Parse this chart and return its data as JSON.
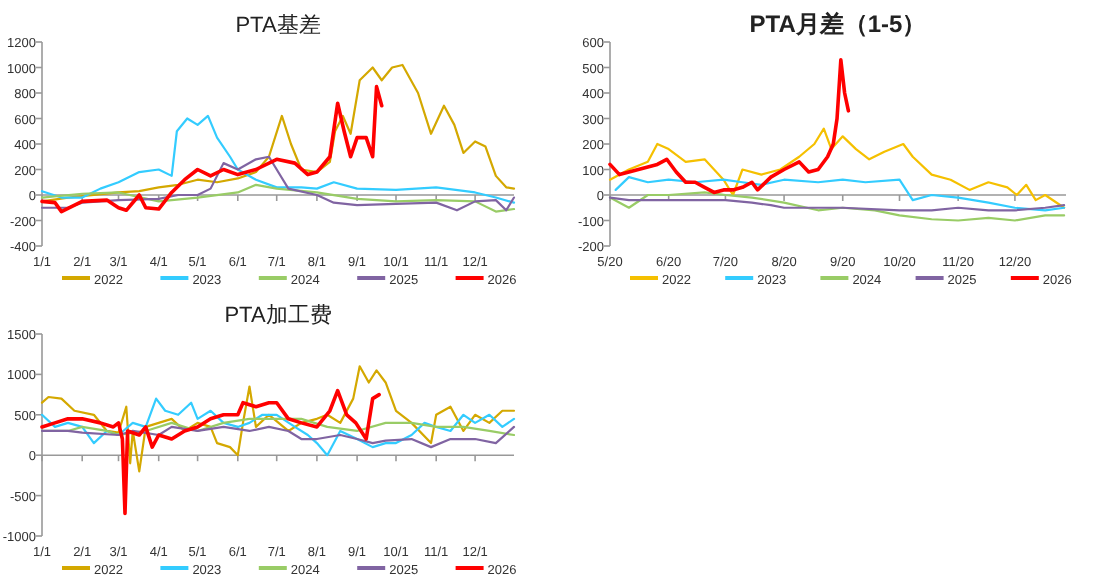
{
  "chart_data": [
    {
      "type": "line",
      "title": "PTA基差",
      "xlim": [
        "--01-01",
        "--12-31"
      ],
      "xticks": [
        {
          "value": "--01-01",
          "label": "1/1"
        },
        {
          "value": "--02-01",
          "label": "2/1"
        },
        {
          "value": "--03-01",
          "label": "3/1"
        },
        {
          "value": "--04-01",
          "label": "4/1"
        },
        {
          "value": "--05-01",
          "label": "5/1"
        },
        {
          "value": "--06-01",
          "label": "6/1"
        },
        {
          "value": "--07-01",
          "label": "7/1"
        },
        {
          "value": "--08-01",
          "label": "8/1"
        },
        {
          "value": "--09-01",
          "label": "9/1"
        },
        {
          "value": "--10-01",
          "label": "10/1"
        },
        {
          "value": "--11-01",
          "label": "11/1"
        },
        {
          "value": "--12-01",
          "label": "12/1"
        }
      ],
      "ylim": [
        -400,
        1200
      ],
      "yticks": [
        -400,
        -200,
        0,
        200,
        400,
        600,
        800,
        1000,
        1200
      ],
      "legend": "bottom",
      "marker": "none",
      "line_style": "solid",
      "series": [
        {
          "name": "2022",
          "color": "#d4a800",
          "x": [
            "--01-01",
            "--01-21",
            "--02-10",
            "--03-01",
            "--03-17",
            "--04-01",
            "--04-16",
            "--05-01",
            "--05-16",
            "--06-01",
            "--06-15",
            "--06-25",
            "--07-05",
            "--07-12",
            "--07-20",
            "--08-01",
            "--08-11",
            "--08-15",
            "--08-21",
            "--08-27",
            "--09-03",
            "--09-13",
            "--09-20",
            "--09-28",
            "--10-06",
            "--10-18",
            "--10-28",
            "--11-07",
            "--11-15",
            "--11-22",
            "--12-01",
            "--12-09",
            "--12-17",
            "--12-25",
            "--12-31"
          ],
          "values": [
            -50,
            -20,
            0,
            20,
            30,
            60,
            80,
            120,
            100,
            130,
            180,
            300,
            620,
            400,
            200,
            180,
            260,
            500,
            620,
            480,
            900,
            1000,
            900,
            1000,
            1020,
            800,
            480,
            700,
            550,
            330,
            420,
            380,
            150,
            60,
            50
          ]
        },
        {
          "name": "2023",
          "color": "#33ccff",
          "x": [
            "--01-01",
            "--01-16",
            "--02-01",
            "--02-15",
            "--03-01",
            "--03-17",
            "--04-01",
            "--04-11",
            "--04-15",
            "--04-23",
            "--05-01",
            "--05-09",
            "--05-16",
            "--05-26",
            "--06-01",
            "--06-15",
            "--07-01",
            "--07-20",
            "--08-01",
            "--08-14",
            "--09-01",
            "--10-01",
            "--11-01",
            "--12-01",
            "--12-17",
            "--12-31"
          ],
          "values": [
            30,
            -20,
            -20,
            50,
            100,
            180,
            200,
            150,
            500,
            600,
            550,
            620,
            450,
            300,
            200,
            120,
            60,
            60,
            50,
            100,
            50,
            40,
            60,
            20,
            -20,
            -60
          ]
        },
        {
          "name": "2024",
          "color": "#99cc66",
          "x": [
            "--01-01",
            "--02-01",
            "--03-01",
            "--04-01",
            "--05-01",
            "--06-01",
            "--06-15",
            "--07-01",
            "--08-01",
            "--09-01",
            "--10-01",
            "--11-01",
            "--12-01",
            "--12-17",
            "--12-31"
          ],
          "values": [
            -20,
            10,
            20,
            -50,
            -20,
            20,
            80,
            50,
            20,
            -30,
            -50,
            -40,
            -50,
            -130,
            -110
          ]
        },
        {
          "name": "2025",
          "color": "#8064a2",
          "x": [
            "--01-01",
            "--01-21",
            "--02-01",
            "--03-01",
            "--04-01",
            "--04-16",
            "--05-01",
            "--05-11",
            "--05-21",
            "--06-01",
            "--06-15",
            "--06-25",
            "--07-01",
            "--07-10",
            "--08-01",
            "--08-14",
            "--09-01",
            "--10-01",
            "--11-01",
            "--11-17",
            "--12-01",
            "--12-17",
            "--12-25",
            "--12-31"
          ],
          "values": [
            -100,
            -100,
            -60,
            -40,
            -30,
            0,
            0,
            50,
            250,
            200,
            280,
            300,
            200,
            50,
            0,
            -60,
            -80,
            -70,
            -60,
            -120,
            -50,
            -40,
            -120,
            -20
          ]
        },
        {
          "name": "2026",
          "color": "#ff0000",
          "x": [
            "--01-01",
            "--01-11",
            "--01-16",
            "--02-01",
            "--02-20",
            "--03-01",
            "--03-07",
            "--03-17",
            "--03-22",
            "--04-01",
            "--04-11",
            "--04-21",
            "--05-01",
            "--05-11",
            "--05-21",
            "--06-01",
            "--06-15",
            "--07-01",
            "--07-15",
            "--07-25",
            "--08-01",
            "--08-11",
            "--08-17",
            "--08-22",
            "--08-27",
            "--09-01",
            "--09-08",
            "--09-13",
            "--09-16",
            "--09-20"
          ],
          "values": [
            -50,
            -60,
            -130,
            -50,
            -40,
            -100,
            -120,
            0,
            -100,
            -110,
            20,
            120,
            200,
            150,
            200,
            160,
            200,
            280,
            250,
            160,
            180,
            300,
            720,
            500,
            300,
            450,
            450,
            300,
            850,
            700
          ]
        }
      ]
    },
    {
      "type": "line",
      "title": "PTA月差（1-5）",
      "xlim": [
        "2025-05-20",
        "2026-01-16"
      ],
      "xticks": [
        {
          "value": "2025-05-20",
          "label": "5/20"
        },
        {
          "value": "2025-06-20",
          "label": "6/20"
        },
        {
          "value": "2025-07-20",
          "label": "7/20"
        },
        {
          "value": "2025-08-20",
          "label": "8/20"
        },
        {
          "value": "2025-09-20",
          "label": "9/20"
        },
        {
          "value": "2025-10-20",
          "label": "10/20"
        },
        {
          "value": "2025-11-20",
          "label": "11/20"
        },
        {
          "value": "2025-12-20",
          "label": "12/20"
        }
      ],
      "ylim": [
        -200,
        600
      ],
      "yticks": [
        -200,
        -100,
        0,
        100,
        200,
        300,
        400,
        500,
        600
      ],
      "legend": "bottom",
      "marker": "none",
      "line_style": "solid",
      "series": [
        {
          "name": "2022",
          "color": "#f5c000",
          "x": [
            "2025-05-20",
            "2025-05-30",
            "2025-06-09",
            "2025-06-14",
            "2025-06-20",
            "2025-06-29",
            "2025-07-09",
            "2025-07-14",
            "2025-07-19",
            "2025-07-24",
            "2025-07-29",
            "2025-08-08",
            "2025-08-18",
            "2025-08-28",
            "2025-09-05",
            "2025-09-10",
            "2025-09-14",
            "2025-09-20",
            "2025-09-27",
            "2025-10-04",
            "2025-10-12",
            "2025-10-22",
            "2025-10-27",
            "2025-11-06",
            "2025-11-16",
            "2025-11-26",
            "2025-12-06",
            "2025-12-16",
            "2025-12-21",
            "2025-12-26",
            "2025-12-31",
            "2026-01-05",
            "2026-01-15"
          ],
          "values": [
            60,
            100,
            130,
            200,
            180,
            130,
            140,
            100,
            60,
            0,
            100,
            80,
            100,
            150,
            200,
            260,
            180,
            230,
            180,
            140,
            170,
            200,
            150,
            80,
            60,
            20,
            50,
            30,
            0,
            40,
            -20,
            0,
            -50
          ]
        },
        {
          "name": "2023",
          "color": "#33ccff",
          "x": [
            "2025-05-23",
            "2025-05-30",
            "2025-06-09",
            "2025-06-20",
            "2025-07-04",
            "2025-07-19",
            "2025-07-29",
            "2025-08-08",
            "2025-08-20",
            "2025-09-07",
            "2025-09-20",
            "2025-10-02",
            "2025-10-20",
            "2025-10-27",
            "2025-11-06",
            "2025-11-20",
            "2025-12-06",
            "2025-12-20",
            "2026-01-05",
            "2026-01-15"
          ],
          "values": [
            20,
            70,
            50,
            60,
            50,
            60,
            50,
            40,
            60,
            50,
            60,
            50,
            60,
            -20,
            0,
            -10,
            -30,
            -50,
            -60,
            -50
          ]
        },
        {
          "name": "2024",
          "color": "#99cc66",
          "x": [
            "2025-05-20",
            "2025-05-30",
            "2025-06-09",
            "2025-06-20",
            "2025-07-09",
            "2025-07-20",
            "2025-08-03",
            "2025-08-20",
            "2025-09-07",
            "2025-09-20",
            "2025-10-07",
            "2025-10-20",
            "2025-11-06",
            "2025-11-20",
            "2025-12-06",
            "2025-12-20",
            "2026-01-05",
            "2026-01-15"
          ],
          "values": [
            -10,
            -50,
            0,
            0,
            10,
            0,
            -10,
            -30,
            -60,
            -50,
            -60,
            -80,
            -95,
            -100,
            -90,
            -100,
            -80,
            -80
          ]
        },
        {
          "name": "2025",
          "color": "#8064a2",
          "x": [
            "2025-05-20",
            "2025-05-30",
            "2025-06-09",
            "2025-06-20",
            "2025-07-09",
            "2025-07-20",
            "2025-08-03",
            "2025-08-13",
            "2025-08-20",
            "2025-09-07",
            "2025-09-20",
            "2025-10-20",
            "2025-11-06",
            "2025-11-20",
            "2025-12-06",
            "2025-12-20",
            "2026-01-05",
            "2026-01-15"
          ],
          "values": [
            -10,
            -20,
            -20,
            -20,
            -20,
            -20,
            -30,
            -40,
            -50,
            -50,
            -50,
            -60,
            -60,
            -50,
            -60,
            -60,
            -50,
            -40
          ]
        },
        {
          "name": "2026",
          "color": "#ff0000",
          "x": [
            "2025-05-20",
            "2025-05-25",
            "2025-05-30",
            "2025-06-04",
            "2025-06-14",
            "2025-06-19",
            "2025-06-24",
            "2025-06-29",
            "2025-07-04",
            "2025-07-09",
            "2025-07-14",
            "2025-07-19",
            "2025-07-24",
            "2025-07-29",
            "2025-08-03",
            "2025-08-06",
            "2025-08-13",
            "2025-08-20",
            "2025-08-28",
            "2025-09-02",
            "2025-09-07",
            "2025-09-12",
            "2025-09-15",
            "2025-09-17",
            "2025-09-19",
            "2025-09-21",
            "2025-09-23"
          ],
          "values": [
            120,
            80,
            90,
            100,
            120,
            140,
            90,
            50,
            50,
            30,
            10,
            20,
            20,
            30,
            50,
            20,
            70,
            100,
            130,
            90,
            100,
            150,
            200,
            300,
            530,
            400,
            330
          ]
        }
      ]
    },
    {
      "type": "line",
      "title": "PTA加工费",
      "xlim": [
        "--01-01",
        "--12-31"
      ],
      "xticks": [
        {
          "value": "--01-01",
          "label": "1/1"
        },
        {
          "value": "--02-01",
          "label": "2/1"
        },
        {
          "value": "--03-01",
          "label": "3/1"
        },
        {
          "value": "--04-01",
          "label": "4/1"
        },
        {
          "value": "--05-01",
          "label": "5/1"
        },
        {
          "value": "--06-01",
          "label": "6/1"
        },
        {
          "value": "--07-01",
          "label": "7/1"
        },
        {
          "value": "--08-01",
          "label": "8/1"
        },
        {
          "value": "--09-01",
          "label": "9/1"
        },
        {
          "value": "--10-01",
          "label": "10/1"
        },
        {
          "value": "--11-01",
          "label": "11/1"
        },
        {
          "value": "--12-01",
          "label": "12/1"
        }
      ],
      "ylim": [
        -1000,
        1500
      ],
      "yticks": [
        -1000,
        -500,
        0,
        500,
        1000,
        1500
      ],
      "legend": "bottom",
      "marker": "none",
      "line_style": "solid",
      "series": [
        {
          "name": "2022",
          "color": "#d4a800",
          "x": [
            "--01-01",
            "--01-06",
            "--01-16",
            "--01-26",
            "--02-10",
            "--02-20",
            "--03-01",
            "--03-07",
            "--03-10",
            "--03-12",
            "--03-17",
            "--03-22",
            "--04-01",
            "--04-11",
            "--04-21",
            "--05-01",
            "--05-11",
            "--05-16",
            "--05-26",
            "--06-01",
            "--06-05",
            "--06-10",
            "--06-15",
            "--06-25",
            "--07-10",
            "--07-20",
            "--08-01",
            "--08-09",
            "--08-19",
            "--08-29",
            "--09-03",
            "--09-10",
            "--09-16",
            "--09-23",
            "--10-01",
            "--10-13",
            "--10-28",
            "--11-01",
            "--11-12",
            "--11-22",
            "--12-01",
            "--12-12",
            "--12-22",
            "--12-31"
          ],
          "values": [
            650,
            720,
            700,
            550,
            500,
            300,
            280,
            600,
            -100,
            300,
            -200,
            350,
            400,
            450,
            300,
            400,
            350,
            150,
            100,
            0,
            400,
            850,
            350,
            500,
            300,
            400,
            450,
            500,
            400,
            700,
            1100,
            900,
            1050,
            900,
            550,
            400,
            150,
            500,
            600,
            300,
            500,
            400,
            550,
            550
          ]
        },
        {
          "name": "2023",
          "color": "#33ccff",
          "x": [
            "--01-01",
            "--01-11",
            "--01-21",
            "--02-01",
            "--02-10",
            "--02-20",
            "--03-01",
            "--03-12",
            "--03-22",
            "--03-30",
            "--04-06",
            "--04-16",
            "--04-26",
            "--05-01",
            "--05-11",
            "--05-21",
            "--06-01",
            "--06-10",
            "--06-20",
            "--07-01",
            "--07-15",
            "--07-25",
            "--08-01",
            "--08-09",
            "--08-19",
            "--09-01",
            "--09-13",
            "--09-23",
            "--10-01",
            "--10-13",
            "--10-23",
            "--11-01",
            "--11-12",
            "--11-22",
            "--12-01",
            "--12-12",
            "--12-22",
            "--12-31"
          ],
          "values": [
            500,
            350,
            400,
            350,
            150,
            300,
            250,
            400,
            350,
            700,
            550,
            500,
            650,
            450,
            550,
            400,
            350,
            400,
            500,
            500,
            350,
            250,
            150,
            0,
            300,
            200,
            100,
            150,
            150,
            250,
            400,
            350,
            300,
            500,
            400,
            500,
            350,
            450
          ]
        },
        {
          "name": "2024",
          "color": "#99cc66",
          "x": [
            "--01-01",
            "--01-21",
            "--02-01",
            "--02-20",
            "--03-01",
            "--03-22",
            "--04-11",
            "--05-01",
            "--05-21",
            "--06-10",
            "--07-01",
            "--07-20",
            "--08-09",
            "--09-01",
            "--09-23",
            "--10-13",
            "--11-01",
            "--11-22",
            "--12-12",
            "--12-31"
          ],
          "values": [
            300,
            300,
            350,
            300,
            250,
            300,
            400,
            300,
            400,
            450,
            450,
            450,
            350,
            300,
            400,
            400,
            350,
            350,
            300,
            250
          ]
        },
        {
          "name": "2025",
          "color": "#8064a2",
          "x": [
            "--01-01",
            "--01-21",
            "--02-01",
            "--03-01",
            "--03-12",
            "--04-01",
            "--04-11",
            "--05-01",
            "--05-21",
            "--06-10",
            "--06-25",
            "--07-10",
            "--07-20",
            "--08-01",
            "--08-19",
            "--09-01",
            "--09-13",
            "--09-23",
            "--10-13",
            "--10-28",
            "--11-12",
            "--12-01",
            "--12-17",
            "--12-31"
          ],
          "values": [
            300,
            300,
            280,
            250,
            300,
            250,
            350,
            300,
            350,
            300,
            350,
            300,
            200,
            200,
            250,
            200,
            150,
            180,
            200,
            100,
            200,
            200,
            150,
            350
          ]
        },
        {
          "name": "2026",
          "color": "#ff0000",
          "x": [
            "--01-01",
            "--01-11",
            "--01-21",
            "--02-01",
            "--02-15",
            "--02-25",
            "--03-01",
            "--03-04",
            "--03-06",
            "--03-08",
            "--03-17",
            "--03-22",
            "--03-27",
            "--04-01",
            "--04-11",
            "--04-21",
            "--05-01",
            "--05-11",
            "--05-21",
            "--06-01",
            "--06-05",
            "--06-15",
            "--06-25",
            "--07-01",
            "--07-10",
            "--07-20",
            "--08-01",
            "--08-11",
            "--08-17",
            "--08-24",
            "--08-31",
            "--09-08",
            "--09-13",
            "--09-18"
          ],
          "values": [
            350,
            400,
            450,
            450,
            400,
            350,
            400,
            200,
            -720,
            300,
            250,
            350,
            100,
            250,
            200,
            300,
            350,
            450,
            500,
            500,
            650,
            600,
            650,
            650,
            450,
            400,
            350,
            550,
            800,
            500,
            400,
            200,
            700,
            750
          ]
        }
      ]
    }
  ]
}
